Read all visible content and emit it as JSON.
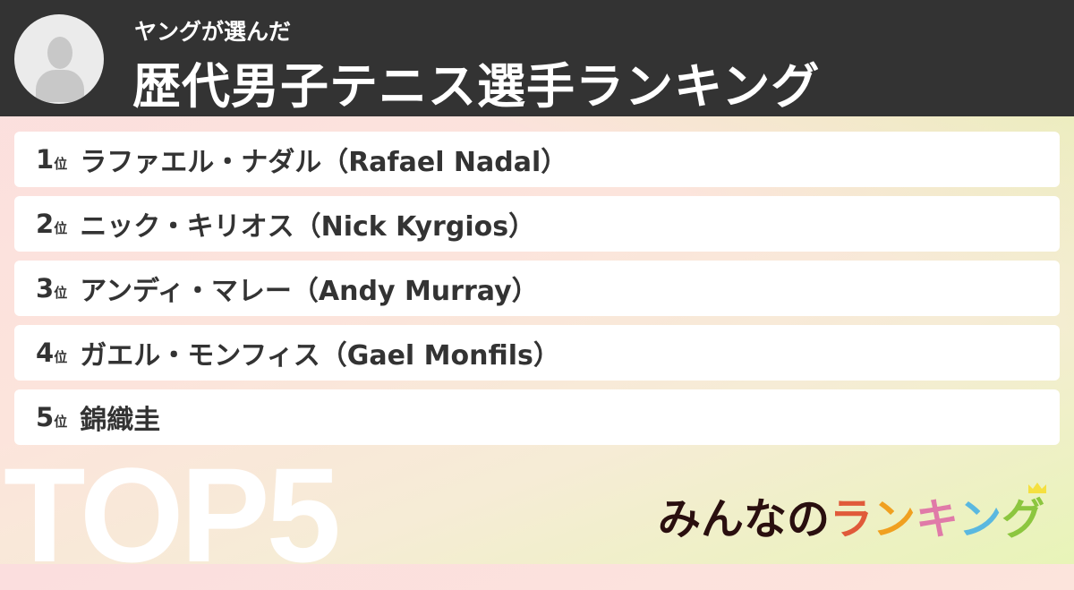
{
  "header": {
    "subtitle": "ヤングが選んだ",
    "title": "歴代男子テニス選手ランキング",
    "avatar_icon": "user-avatar-icon"
  },
  "rank_suffix": "位",
  "ranking": [
    {
      "rank": "1",
      "name": "ラファエル・ナダル（Rafael Nadal）"
    },
    {
      "rank": "2",
      "name": "ニック・キリオス（Nick Kyrgios）"
    },
    {
      "rank": "3",
      "name": "アンディ・マレー（Andy Murray）"
    },
    {
      "rank": "4",
      "name": "ガエル・モンフィス（Gael Monfils）"
    },
    {
      "rank": "5",
      "name": "錦織圭"
    }
  ],
  "badge": "TOP5",
  "logo": {
    "prefix": "みんなの",
    "chars": [
      "ラ",
      "ン",
      "キ",
      "ン",
      "グ"
    ],
    "colors": [
      "#e05a3a",
      "#f0a020",
      "#e07aa8",
      "#5ab8e0",
      "#8cc63f"
    ],
    "prefix_color": "#2a0f0f",
    "crown_color": "#f5e040"
  }
}
